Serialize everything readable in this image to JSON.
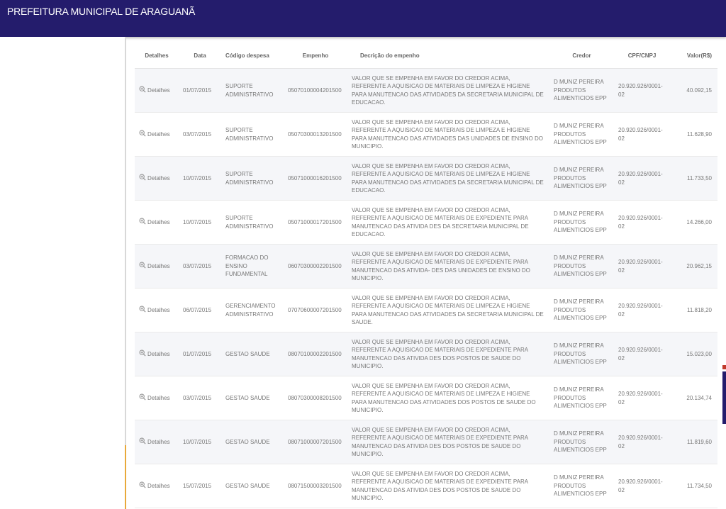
{
  "header": {
    "title": "PREFEITURA MUNICIPAL DE ARAGUANÃ"
  },
  "colors": {
    "header_bg": "#241c6c",
    "sidebar_accent": "#e8a93a",
    "row_stripe": "#f5f6f9"
  },
  "table": {
    "columns": [
      "Detalhes",
      "Data",
      "Código despesa",
      "Empenho",
      "Decrição do empenho",
      "Credor",
      "CPF/CNPJ",
      "Valor(R$)"
    ],
    "detail_label": "Detalhes",
    "detail_icon": "zoom-in-icon",
    "rows": [
      {
        "data": "01/07/2015",
        "codigo": "SUPORTE ADMINISTRATIVO",
        "empenho": "05070100004201500",
        "descricao": "VALOR QUE SE EMPENHA EM FAVOR DO CREDOR ACIMA, REFERENTE A AQUISICAO DE MATERIAIS DE LIMPEZA E HIGIENE PARA MANUTENCAO DAS ATIVIDADES DA SECRETARIA MUNICIPAL DE EDUCACAO.",
        "credor": "D MUNIZ PEREIRA PRODUTOS ALIMENTICIOS EPP",
        "cpf": "20.920.926/0001-02",
        "valor": "40.092,15"
      },
      {
        "data": "03/07/2015",
        "codigo": "SUPORTE ADMINISTRATIVO",
        "empenho": "05070300013201500",
        "descricao": "VALOR QUE SE EMPENHA EM FAVOR DO CREDOR ACIMA, REFERENTE A AQUISICAO DE MATERIAIS DE LIMPEZA E HIGIENE PARA MANUTENCAO DAS ATIVIDADES DAS UNIDADES DE ENSINO DO MUNICIPIO.",
        "credor": "D MUNIZ PEREIRA PRODUTOS ALIMENTICIOS EPP",
        "cpf": "20.920.926/0001-02",
        "valor": "11.628,90"
      },
      {
        "data": "10/07/2015",
        "codigo": "SUPORTE ADMINISTRATIVO",
        "empenho": "05071000016201500",
        "descricao": "VALOR QUE SE EMPENHA EM FAVOR DO CREDOR ACIMA, REFERENTE A AQUISICAO DE MATERIAIS DE LIMPEZA E HIGIENE PARA MANUTENCAO DAS ATIVIDADES DA SECRETARIA MUNICIPAL DE EDUCACAO.",
        "credor": "D MUNIZ PEREIRA PRODUTOS ALIMENTICIOS EPP",
        "cpf": "20.920.926/0001-02",
        "valor": "11.733,50"
      },
      {
        "data": "10/07/2015",
        "codigo": "SUPORTE ADMINISTRATIVO",
        "empenho": "05071000017201500",
        "descricao": "VALOR QUE SE EMPENHA EM FAVOR DO CREDOR ACIMA, REFERENTE A AQUISICAO DE MATERIAIS DE EXPEDIENTE PARA MANUTENCAO DAS ATIVIDA DES DA SECRETARIA MUNICIPAL DE EDUCACAO.",
        "credor": "D MUNIZ PEREIRA PRODUTOS ALIMENTICIOS EPP",
        "cpf": "20.920.926/0001-02",
        "valor": "14.266,00"
      },
      {
        "data": "03/07/2015",
        "codigo": "FORMACAO DO ENSINO FUNDAMENTAL",
        "empenho": "06070300002201500",
        "descricao": "VALOR QUE SE EMPENHA EM FAVOR DO CREDOR ACIMA, REFERENTE A AQUISICAO DE MATERIAIS DE EXPEDIENTE PARA MANUTENCAO DAS ATIVIDA- DES DAS UNIDADES DE ENSINO DO MUNICIPIO.",
        "credor": "D MUNIZ PEREIRA PRODUTOS ALIMENTICIOS EPP",
        "cpf": "20.920.926/0001-02",
        "valor": "20.962,15"
      },
      {
        "data": "06/07/2015",
        "codigo": "GERENCIAMENTO ADMINISTRATIVO",
        "empenho": "07070600007201500",
        "descricao": "VALOR QUE SE EMPENHA EM FAVOR DO CREDOR ACIMA, REFERENTE A AQUISICAO DE MATERIAIS DE LIMPEZA E HIGIENE PARA MANUTENCAO DAS ATIVIDADES DA SECRETARIA MUNICIPAL DE SAUDE.",
        "credor": "D MUNIZ PEREIRA PRODUTOS ALIMENTICIOS EPP",
        "cpf": "20.920.926/0001-02",
        "valor": "11.818,20"
      },
      {
        "data": "01/07/2015",
        "codigo": "GESTAO SAUDE",
        "empenho": "08070100002201500",
        "descricao": "VALOR QUE SE EMPENHA EM FAVOR DO CREDOR ACIMA, REFERENTE A AQUISICAO DE MATERIAIS DE EXPEDIENTE PARA MANUTENCAO DAS ATIVIDA DES DOS POSTOS DE SAUDE DO MUNICIPIO.",
        "credor": "D MUNIZ PEREIRA PRODUTOS ALIMENTICIOS EPP",
        "cpf": "20.920.926/0001-02",
        "valor": "15.023,00"
      },
      {
        "data": "03/07/2015",
        "codigo": "GESTAO SAUDE",
        "empenho": "08070300008201500",
        "descricao": "VALOR QUE SE EMPENHA EM FAVOR DO CREDOR ACIMA, REFERENTE A AQUISICAO DE MATERIAIS DE LIMPEZA E HIGIENE PARA MANUTENCAO DAS ATIVIDADES DOS POSTOS DE SAUDE DO MUNICIPIO.",
        "credor": "D MUNIZ PEREIRA PRODUTOS ALIMENTICIOS EPP",
        "cpf": "20.920.926/0001-02",
        "valor": "20.134,74"
      },
      {
        "data": "10/07/2015",
        "codigo": "GESTAO SAUDE",
        "empenho": "08071000007201500",
        "descricao": "VALOR QUE SE EMPENHA EM FAVOR DO CREDOR ACIMA, REFERENTE A AQUISICAO DE MATERIAIS DE EXPEDIENTE PARA MANUTENCAO DAS ATIVIDA DES DOS POSTOS DE SAUDE DO MUNICIPIO.",
        "credor": "D MUNIZ PEREIRA PRODUTOS ALIMENTICIOS EPP",
        "cpf": "20.920.926/0001-02",
        "valor": "11.819,60"
      },
      {
        "data": "15/07/2015",
        "codigo": "GESTAO SAUDE",
        "empenho": "08071500003201500",
        "descricao": "VALOR QUE SE EMPENHA EM FAVOR DO CREDOR ACIMA, REFERENTE A AQUISICAO DE MATERIAIS DE EXPEDIENTE PARA MANUTENCAO DAS ATIVIDA DES DOS POSTOS DE SAUDE DO MUNICIPIO.",
        "credor": "D MUNIZ PEREIRA PRODUTOS ALIMENTICIOS EPP",
        "cpf": "20.920.926/0001-02",
        "valor": "11.734,50"
      }
    ]
  }
}
